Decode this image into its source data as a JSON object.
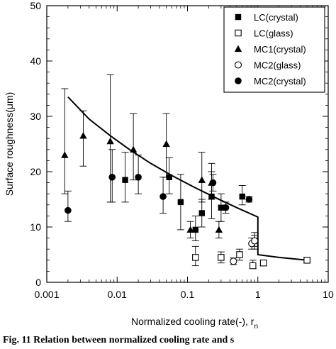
{
  "chart_data": {
    "type": "scatter",
    "xlabel": "Normalized cooling rate(-), r",
    "xlabel_subscript": "n",
    "ylabel": "Surface roughness(μm)",
    "xscale": "log",
    "xlim": [
      0.001,
      10
    ],
    "ylim": [
      0,
      50
    ],
    "x_ticks": [
      "0.001",
      "0.01",
      "0.1",
      "1",
      "10"
    ],
    "y_ticks": [
      "0",
      "10",
      "20",
      "30",
      "40",
      "50"
    ],
    "legend_position": "top-right",
    "series": [
      {
        "name": "LC(crystal)",
        "marker": "filled-square",
        "points": [
          {
            "x": 0.013,
            "y": 18.5,
            "lo": 14.5,
            "hi": 23.5
          },
          {
            "x": 0.055,
            "y": 19.0,
            "lo": 16.0,
            "hi": 22.5
          },
          {
            "x": 0.08,
            "y": 14.5,
            "lo": 9.5,
            "hi": 19.5
          },
          {
            "x": 0.13,
            "y": 9.5,
            "lo": 7.5,
            "hi": 12.0
          },
          {
            "x": 0.16,
            "y": 12.5,
            "lo": 10.0,
            "hi": 15.0
          },
          {
            "x": 0.22,
            "y": 15.5,
            "lo": 11.5,
            "hi": 20.0
          },
          {
            "x": 0.3,
            "y": 13.5,
            "lo": 11.0,
            "hi": 16.0
          },
          {
            "x": 0.6,
            "y": 15.5,
            "lo": 14.0,
            "hi": 17.5
          },
          {
            "x": 0.9,
            "y": 7.5,
            "lo": 6.0,
            "hi": 9.0
          }
        ]
      },
      {
        "name": "LC(glass)",
        "marker": "open-square",
        "points": [
          {
            "x": 0.13,
            "y": 4.5,
            "lo": 3.0,
            "hi": 6.5
          },
          {
            "x": 0.3,
            "y": 4.5,
            "lo": 3.5,
            "hi": 5.5
          },
          {
            "x": 0.55,
            "y": 5.0,
            "lo": 4.0,
            "hi": 6.0
          },
          {
            "x": 0.85,
            "y": 3.0,
            "lo": 2.5,
            "hi": 4.0
          },
          {
            "x": 1.2,
            "y": 3.5,
            "lo": 3.0,
            "hi": 4.0
          },
          {
            "x": 5.0,
            "y": 4.0,
            "lo": 3.5,
            "hi": 4.5
          }
        ]
      },
      {
        "name": "MC1(crystal)",
        "marker": "filled-triangle",
        "points": [
          {
            "x": 0.0018,
            "y": 23.0,
            "lo": 16.0,
            "hi": 35.0
          },
          {
            "x": 0.0033,
            "y": 26.5,
            "lo": 21.0,
            "hi": 31.0
          },
          {
            "x": 0.008,
            "y": 25.5,
            "lo": 14.5,
            "hi": 37.5
          },
          {
            "x": 0.017,
            "y": 24.0,
            "lo": 18.5,
            "hi": 30.5
          },
          {
            "x": 0.05,
            "y": 25.0,
            "lo": 19.0,
            "hi": 30.5
          },
          {
            "x": 0.11,
            "y": 9.5,
            "lo": 8.0,
            "hi": 11.0
          },
          {
            "x": 0.16,
            "y": 18.5,
            "lo": 14.5,
            "hi": 23.5
          },
          {
            "x": 0.22,
            "y": 18.0,
            "lo": 15.0,
            "hi": 21.5
          },
          {
            "x": 0.28,
            "y": 9.5,
            "lo": 8.0,
            "hi": 11.0
          }
        ]
      },
      {
        "name": "MC2(glass)",
        "marker": "open-circle",
        "points": [
          {
            "x": 0.45,
            "y": 3.8,
            "lo": 3.2,
            "hi": 4.4
          },
          {
            "x": 0.82,
            "y": 7.0,
            "lo": 6.0,
            "hi": 8.0
          },
          {
            "x": 0.9,
            "y": 7.5,
            "lo": 6.5,
            "hi": 8.5
          }
        ]
      },
      {
        "name": "MC2(crystal)",
        "marker": "filled-circle",
        "points": [
          {
            "x": 0.002,
            "y": 13.0,
            "lo": 11.0,
            "hi": 16.5
          },
          {
            "x": 0.0085,
            "y": 19.0,
            "lo": 14.5,
            "hi": 24.0
          },
          {
            "x": 0.02,
            "y": 19.0,
            "lo": 16.0,
            "hi": 23.0
          },
          {
            "x": 0.045,
            "y": 15.5,
            "lo": 12.5,
            "hi": 19.0
          },
          {
            "x": 0.23,
            "y": 18.0,
            "lo": 16.5,
            "hi": 19.5
          },
          {
            "x": 0.35,
            "y": 13.5,
            "lo": 12.5,
            "hi": 14.5
          },
          {
            "x": 0.75,
            "y": 15.0,
            "lo": 14.5,
            "hi": 15.5
          }
        ]
      }
    ],
    "model_curve": {
      "x": [
        0.002,
        0.004,
        0.008,
        0.015,
        0.03,
        0.06,
        0.12,
        0.25,
        0.5,
        1.0,
        1.0,
        2.0,
        5.0
      ],
      "y": [
        33.5,
        29.5,
        26.5,
        24.0,
        21.5,
        19.3,
        17.3,
        15.3,
        13.5,
        11.8,
        5.0,
        4.5,
        4.0
      ]
    }
  },
  "caption": "Fig. 11   Relation between normalized cooling rate and s"
}
